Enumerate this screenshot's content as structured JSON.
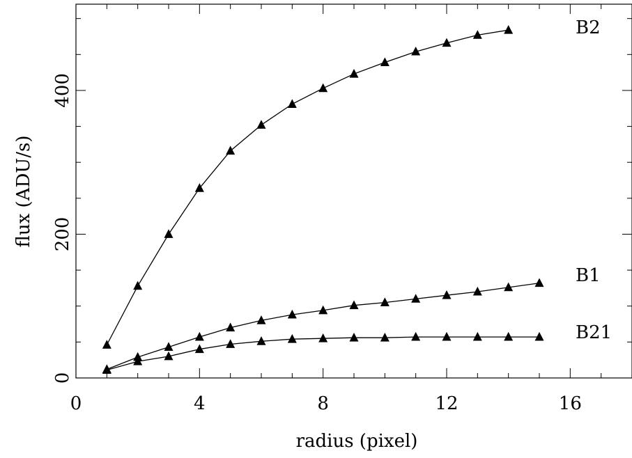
{
  "chart_data": {
    "type": "line",
    "xlabel": "radius (pixel)",
    "ylabel": "flux (ADU/s)",
    "xlim": [
      0,
      18
    ],
    "ylim": [
      0,
      520
    ],
    "xticks": [
      0,
      4,
      8,
      12,
      16
    ],
    "yticks": [
      0,
      200,
      400
    ],
    "xtick_labels": [
      "0",
      "4",
      "8",
      "12",
      "16"
    ],
    "ytick_labels": [
      "0",
      "200",
      "400"
    ],
    "marker": "triangle",
    "grid": false,
    "series": [
      {
        "name": "B2",
        "x": [
          1,
          2,
          3,
          4,
          5,
          6,
          7,
          8,
          9,
          10,
          11,
          12,
          13,
          14
        ],
        "values": [
          46,
          128,
          200,
          264,
          316,
          352,
          381,
          403,
          423,
          439,
          454,
          466,
          477,
          484
        ]
      },
      {
        "name": "B1",
        "x": [
          1,
          2,
          3,
          4,
          5,
          6,
          7,
          8,
          9,
          10,
          11,
          12,
          13,
          14,
          15
        ],
        "values": [
          12,
          29,
          43,
          57,
          70,
          80,
          88,
          94,
          101,
          105,
          110,
          115,
          120,
          126,
          132
        ]
      },
      {
        "name": "B21",
        "x": [
          1,
          2,
          3,
          4,
          5,
          6,
          7,
          8,
          9,
          10,
          11,
          12,
          13,
          14,
          15
        ],
        "values": [
          11,
          23,
          30,
          40,
          47,
          51,
          54,
          55,
          56,
          56,
          57,
          57,
          57,
          57,
          57
        ]
      }
    ]
  }
}
